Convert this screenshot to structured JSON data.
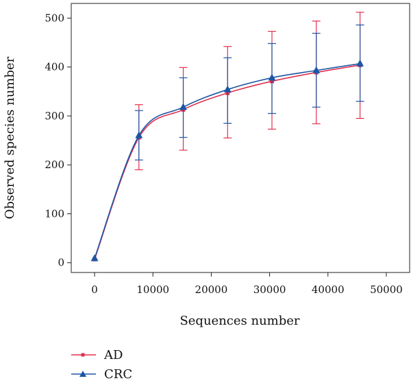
{
  "chart_data": {
    "type": "line",
    "xlabel": "Sequences number",
    "ylabel": "Observed species number",
    "xlim": [
      -4000,
      54000
    ],
    "ylim": [
      -20,
      530
    ],
    "xticks": [
      0,
      10000,
      20000,
      30000,
      40000,
      50000
    ],
    "xtick_labels": [
      "0",
      "10000",
      "20000",
      "30000",
      "40000",
      "50000"
    ],
    "yticks": [
      0,
      100,
      200,
      300,
      400,
      500
    ],
    "ytick_labels": [
      "0",
      "100",
      "200",
      "300",
      "400",
      "500"
    ],
    "grid": false,
    "legend": "bottom-left, below plot",
    "series": [
      {
        "name": "AD",
        "color": "#e0304f",
        "marker": "square",
        "x": [
          0,
          7600,
          15200,
          22800,
          30400,
          38000,
          45500
        ],
        "y": [
          7,
          256,
          313,
          347,
          371,
          389,
          404
        ],
        "err_low": [
          7,
          190,
          230,
          255,
          273,
          284,
          295
        ],
        "err_high": [
          7,
          323,
          399,
          442,
          473,
          494,
          512
        ]
      },
      {
        "name": "CRC",
        "color": "#1b56a5",
        "marker": "triangle",
        "x": [
          0,
          7600,
          15200,
          22800,
          30400,
          38000,
          45500
        ],
        "y": [
          9,
          260,
          318,
          354,
          378,
          393,
          407
        ],
        "err_low": [
          9,
          210,
          256,
          285,
          305,
          318,
          330
        ],
        "err_high": [
          9,
          311,
          378,
          419,
          448,
          469,
          486
        ]
      }
    ]
  }
}
